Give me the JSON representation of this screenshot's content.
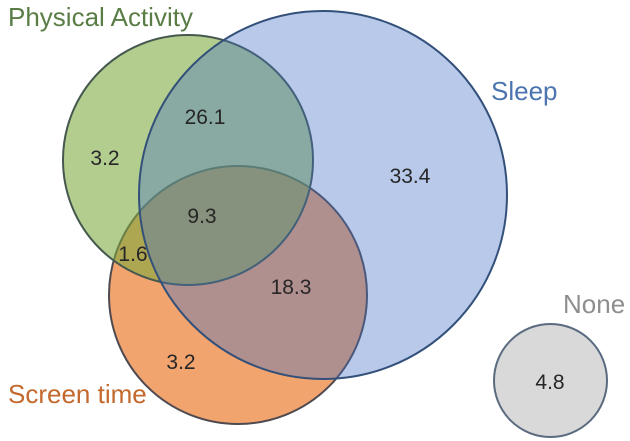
{
  "chart_data": {
    "type": "venn",
    "title": "",
    "background": "#FFFFFF",
    "legend_position": "labels-beside-circles",
    "sets": [
      {
        "label": "Physical Activity",
        "fill_color": "#B9D08F",
        "base_color": "#70AD47",
        "label_color": "#5A7D46"
      },
      {
        "label": "Sleep",
        "fill_color": "#BFCDE7",
        "base_color": "#4472C4",
        "label_color": "#4C74B0"
      },
      {
        "label": "Screen time",
        "fill_color": "#F2A46F",
        "base_color": "#ED7D31",
        "label_color": "#C3692D"
      },
      {
        "label": "None",
        "fill_color": "#D9D9D9",
        "base_color": "#A5A5A5",
        "label_color": "#8E8E8E"
      }
    ],
    "regions": [
      {
        "sets": [
          "Physical Activity"
        ],
        "value": 3.2
      },
      {
        "sets": [
          "Physical Activity",
          "Sleep"
        ],
        "value": 26.1
      },
      {
        "sets": [
          "Sleep"
        ],
        "value": 33.4
      },
      {
        "sets": [
          "Physical Activity",
          "Sleep",
          "Screen time"
        ],
        "value": 9.3
      },
      {
        "sets": [
          "Physical Activity",
          "Screen time"
        ],
        "value": 1.6
      },
      {
        "sets": [
          "Sleep",
          "Screen time"
        ],
        "value": 18.3
      },
      {
        "sets": [
          "Screen time"
        ],
        "value": 3.2
      },
      {
        "sets": [
          "None"
        ],
        "value": 4.8
      }
    ]
  }
}
